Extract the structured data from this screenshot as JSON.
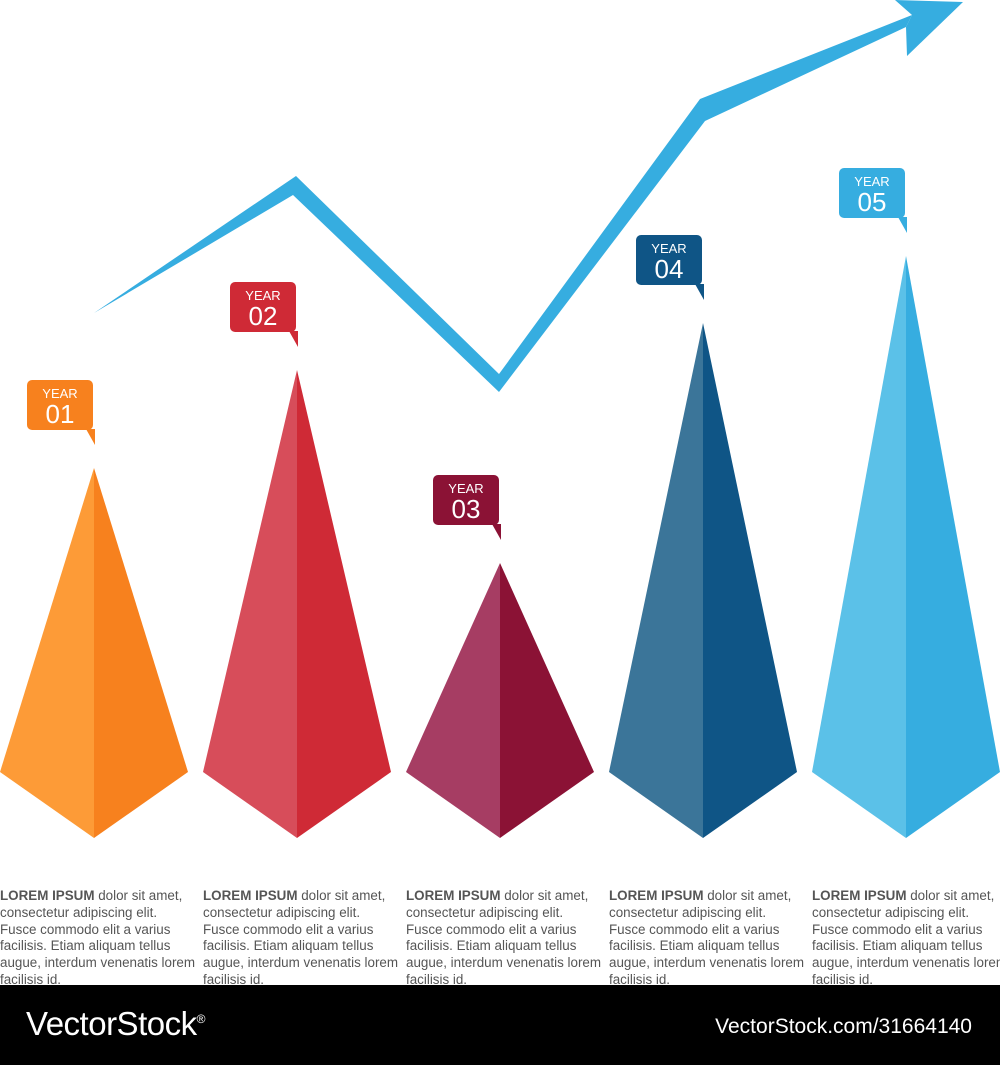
{
  "chart_data": {
    "type": "bar",
    "categories": [
      "YEAR 01",
      "YEAR 02",
      "YEAR 03",
      "YEAR 04",
      "YEAR 05"
    ],
    "items": [
      {
        "year_label": "YEAR",
        "year_num": "01",
        "value": 370,
        "color_light": "#fd9b37",
        "color_dark": "#f7811e",
        "text_color": "#f7811e",
        "dot_color": "#f7811e"
      },
      {
        "year_label": "YEAR",
        "year_num": "02",
        "value": 468,
        "color_light": "#d74d5a",
        "color_dark": "#cf2a36",
        "text_color": "#cf2a36",
        "dot_color": "#cf2a36"
      },
      {
        "year_label": "YEAR",
        "year_num": "03",
        "value": 275,
        "color_light": "#a63d63",
        "color_dark": "#8b1235",
        "text_color": "#8b1235",
        "dot_color": "#8b1235"
      },
      {
        "year_label": "YEAR",
        "year_num": "04",
        "value": 515,
        "color_light": "#3b7599",
        "color_dark": "#0f5586",
        "text_color": "#0f5586",
        "dot_color": "#0f5586"
      },
      {
        "year_label": "YEAR",
        "year_num": "05",
        "value": 582,
        "color_light": "#5bc1e8",
        "color_dark": "#36ade0",
        "text_color": "#36ade0",
        "dot_color": "#36ade0"
      }
    ],
    "trend_color": "#36ade0"
  },
  "blocks": [
    {
      "lead": "LOREM IPSUM",
      "body": " dolor sit amet, consectetur adipiscing elit. Fusce commodo elit a varius facilisis. Etiam aliquam tellus augue, interdum venenatis lorem facilisis id."
    },
    {
      "lead": "LOREM IPSUM",
      "body": " dolor sit amet, consectetur adipiscing elit. Fusce commodo elit a varius facilisis. Etiam aliquam tellus augue, interdum venenatis lorem facilisis id."
    },
    {
      "lead": "LOREM IPSUM",
      "body": " dolor sit amet, consectetur adipiscing elit. Fusce commodo elit a varius facilisis. Etiam aliquam tellus augue, interdum venenatis lorem facilisis id."
    },
    {
      "lead": "LOREM IPSUM",
      "body": " dolor sit amet, consectetur adipiscing elit. Fusce commodo elit a varius facilisis. Etiam aliquam tellus augue, interdum venenatis lorem facilisis id."
    },
    {
      "lead": "LOREM IPSUM",
      "body": " dolor sit amet, consectetur adipiscing elit. Fusce commodo elit a varius facilisis. Etiam aliquam tellus augue, interdum venenatis lorem facilisis id."
    }
  ],
  "footer": {
    "brand": "VectorStock",
    "brand_mark": "®",
    "ref": "VectorStock.com/31664140"
  }
}
